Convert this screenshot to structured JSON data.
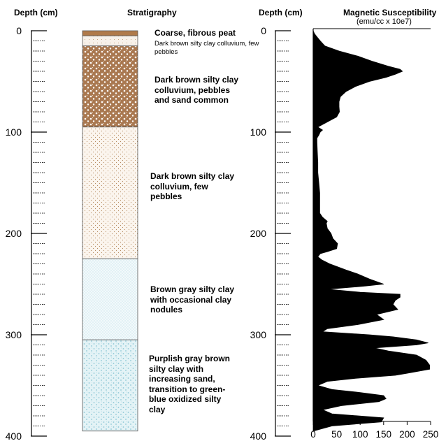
{
  "headers": {
    "depth_left": "Depth (cm)",
    "stratigraphy": "Stratigraphy",
    "depth_right": "Depth (cm)",
    "susceptibility_title": "Magnetic Susceptibility",
    "susceptibility_units": "(emu/cc x 10e7)"
  },
  "depth_ticks": [
    "0",
    "100",
    "200",
    "300",
    "400"
  ],
  "susceptibility_ticks": [
    "0",
    "50",
    "100",
    "150",
    "200",
    "250"
  ],
  "layers": [
    {
      "top": 0,
      "bottom": 5,
      "label": "Coarse, fibrous peat",
      "fill": "#b07a4a",
      "pattern": "none"
    },
    {
      "top": 5,
      "bottom": 15,
      "label": "Dark brown silty clay colluvium, few pebbles",
      "fill": "#f7f1ea",
      "pattern": "sparse-dots"
    },
    {
      "top": 15,
      "bottom": 95,
      "label": "Dark brown silty clay colluvium, pebbles and sand common",
      "fill": "#a97850",
      "pattern": "pebbles"
    },
    {
      "top": 95,
      "bottom": 225,
      "label": "Dark brown silty clay colluvium, few pebbles",
      "fill": "#fbf5ee",
      "pattern": "brown-dots"
    },
    {
      "top": 225,
      "bottom": 305,
      "label": "Brown gray silty clay with occasional clay nodules",
      "fill": "#f2f9fb",
      "pattern": "blue-dots"
    },
    {
      "top": 305,
      "bottom": 395,
      "label": "Purplish gray brown silty clay with increasing sand, transition to green-blue oxidized silty clay",
      "fill": "#e2f2f5",
      "pattern": "blue-pebbles"
    }
  ],
  "chart_data": {
    "type": "area",
    "title": "Magnetic Susceptibility",
    "xlabel": "(emu/cc x 10e7)",
    "ylabel": "Depth (cm)",
    "xlim": [
      0,
      250
    ],
    "ylim": [
      400,
      0
    ],
    "x_ticks": [
      0,
      50,
      100,
      150,
      200,
      250
    ],
    "y_ticks": [
      0,
      100,
      200,
      300,
      400
    ],
    "depth": [
      0,
      3,
      6,
      10,
      15,
      20,
      25,
      30,
      35,
      38,
      40,
      43,
      46,
      50,
      55,
      60,
      65,
      70,
      75,
      80,
      85,
      90,
      95,
      98,
      100,
      103,
      106,
      110,
      120,
      130,
      140,
      150,
      160,
      170,
      180,
      184,
      188,
      190,
      195,
      200,
      205,
      210,
      215,
      218,
      220,
      223,
      226,
      230,
      236,
      240,
      245,
      250,
      252,
      255,
      258,
      260,
      263,
      266,
      270,
      275,
      280,
      285,
      290,
      294,
      297,
      300,
      302,
      305,
      308,
      310,
      313,
      316,
      320,
      325,
      330,
      334,
      338,
      340,
      343,
      346,
      350,
      354,
      357,
      360,
      363,
      366,
      370,
      374,
      378,
      382,
      386,
      390,
      395
    ],
    "values": [
      0,
      3,
      8,
      15,
      25,
      55,
      95,
      125,
      160,
      185,
      190,
      175,
      155,
      120,
      90,
      70,
      58,
      55,
      55,
      56,
      50,
      30,
      10,
      20,
      15,
      12,
      8,
      8,
      9,
      10,
      10,
      12,
      14,
      14,
      14,
      20,
      30,
      28,
      30,
      38,
      42,
      52,
      50,
      30,
      15,
      10,
      18,
      35,
      70,
      95,
      120,
      150,
      110,
      30,
      100,
      185,
      185,
      175,
      170,
      180,
      135,
      150,
      95,
      30,
      20,
      120,
      170,
      220,
      245,
      220,
      130,
      160,
      220,
      240,
      248,
      248,
      200,
      175,
      90,
      30,
      10,
      40,
      100,
      150,
      155,
      140,
      60,
      20,
      40,
      150,
      145,
      40,
      0
    ]
  }
}
